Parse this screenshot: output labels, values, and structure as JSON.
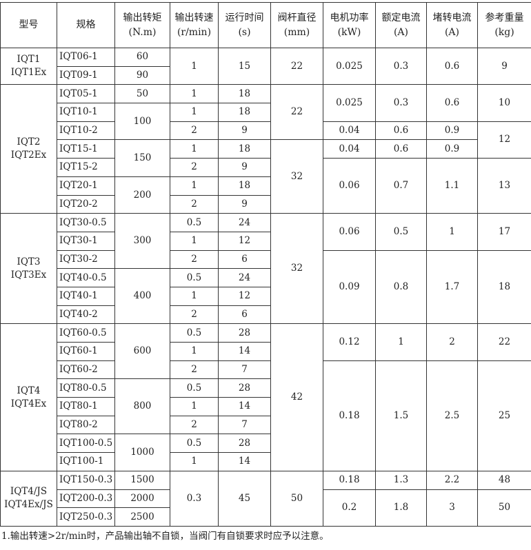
{
  "headers": [
    "型号",
    "规格",
    "输出转矩\n(N.m)",
    "输出转速\n(r/min)",
    "运行时间\n(s)",
    "阀杆直径\n(mm)",
    "电机功率\n(kW)",
    "额定电流\n(A)",
    "堵转电流\n(A)",
    "参考重量\n(kg)"
  ],
  "rows": [
    [
      [
        "IQT1\nIQT1Ex",
        2,
        0
      ],
      [
        "IQT06-1",
        1,
        1
      ],
      [
        "60",
        1,
        2
      ],
      [
        "1",
        2,
        3
      ],
      [
        "15",
        2,
        4
      ],
      [
        "22",
        2,
        5
      ],
      [
        "0.025",
        2,
        6
      ],
      [
        "0.3",
        2,
        7
      ],
      [
        "0.6",
        2,
        8
      ],
      [
        "9",
        2,
        9
      ]
    ],
    [
      [
        "IQT09-1",
        1,
        1
      ],
      [
        "90",
        1,
        2
      ]
    ],
    [
      [
        "IQT2\nIQT2Ex",
        7,
        0
      ],
      [
        "IQT05-1",
        1,
        1
      ],
      [
        "50",
        1,
        2
      ],
      [
        "1",
        1,
        3
      ],
      [
        "18",
        1,
        4
      ],
      [
        "22",
        3,
        5
      ],
      [
        "0.025",
        2,
        6
      ],
      [
        "0.3",
        2,
        7
      ],
      [
        "0.6",
        2,
        8
      ],
      [
        "10",
        2,
        9
      ]
    ],
    [
      [
        "IQT10-1",
        1,
        1
      ],
      [
        "100",
        2,
        2
      ],
      [
        "1",
        1,
        3
      ],
      [
        "18",
        1,
        4
      ]
    ],
    [
      [
        "IQT10-2",
        1,
        1
      ],
      [
        "2",
        1,
        3
      ],
      [
        "9",
        1,
        4
      ],
      [
        "0.04",
        1,
        6
      ],
      [
        "0.6",
        1,
        7
      ],
      [
        "0.9",
        1,
        8
      ],
      [
        "12",
        2,
        9
      ]
    ],
    [
      [
        "IQT15-1",
        1,
        1
      ],
      [
        "150",
        2,
        2
      ],
      [
        "1",
        1,
        3
      ],
      [
        "18",
        1,
        4
      ],
      [
        "32",
        4,
        5
      ],
      [
        "0.04",
        1,
        6
      ],
      [
        "0.6",
        1,
        7
      ],
      [
        "0.9",
        1,
        8
      ]
    ],
    [
      [
        "IQT15-2",
        1,
        1
      ],
      [
        "2",
        1,
        3
      ],
      [
        "9",
        1,
        4
      ],
      [
        "0.06",
        3,
        6
      ],
      [
        "0.7",
        3,
        7
      ],
      [
        "1.1",
        3,
        8
      ],
      [
        "13",
        3,
        9
      ]
    ],
    [
      [
        "IQT20-1",
        1,
        1
      ],
      [
        "200",
        2,
        2
      ],
      [
        "1",
        1,
        3
      ],
      [
        "18",
        1,
        4
      ]
    ],
    [
      [
        "IQT20-2",
        1,
        1
      ],
      [
        "2",
        1,
        3
      ],
      [
        "9",
        1,
        4
      ]
    ],
    [
      [
        "IQT3\nIQT3Ex",
        6,
        0
      ],
      [
        "IQT30-0.5",
        1,
        1
      ],
      [
        "300",
        3,
        2
      ],
      [
        "0.5",
        1,
        3
      ],
      [
        "24",
        1,
        4
      ],
      [
        "32",
        6,
        5
      ],
      [
        "0.06",
        2,
        6
      ],
      [
        "0.5",
        2,
        7
      ],
      [
        "1",
        2,
        8
      ],
      [
        "17",
        2,
        9
      ]
    ],
    [
      [
        "IQT30-1",
        1,
        1
      ],
      [
        "1",
        1,
        3
      ],
      [
        "12",
        1,
        4
      ]
    ],
    [
      [
        "IQT30-2",
        1,
        1
      ],
      [
        "2",
        1,
        3
      ],
      [
        "6",
        1,
        4
      ],
      [
        "0.09",
        4,
        6
      ],
      [
        "0.8",
        4,
        7
      ],
      [
        "1.7",
        4,
        8
      ],
      [
        "18",
        4,
        9
      ]
    ],
    [
      [
        "IQT40-0.5",
        1,
        1
      ],
      [
        "400",
        3,
        2
      ],
      [
        "0.5",
        1,
        3
      ],
      [
        "24",
        1,
        4
      ]
    ],
    [
      [
        "IQT40-1",
        1,
        1
      ],
      [
        "1",
        1,
        3
      ],
      [
        "12",
        1,
        4
      ]
    ],
    [
      [
        "IQT40-2",
        1,
        1
      ],
      [
        "2",
        1,
        3
      ],
      [
        "6",
        1,
        4
      ]
    ],
    [
      [
        "IQT4\nIQT4Ex",
        8,
        0
      ],
      [
        "IQT60-0.5",
        1,
        1
      ],
      [
        "600",
        3,
        2
      ],
      [
        "0.5",
        1,
        3
      ],
      [
        "28",
        1,
        4
      ],
      [
        "42",
        8,
        5
      ],
      [
        "0.12",
        2,
        6
      ],
      [
        "1",
        2,
        7
      ],
      [
        "2",
        2,
        8
      ],
      [
        "22",
        2,
        9
      ]
    ],
    [
      [
        "IQT60-1",
        1,
        1
      ],
      [
        "1",
        1,
        3
      ],
      [
        "14",
        1,
        4
      ]
    ],
    [
      [
        "IQT60-2",
        1,
        1
      ],
      [
        "2",
        1,
        3
      ],
      [
        "7",
        1,
        4
      ],
      [
        "0.18",
        6,
        6
      ],
      [
        "1.5",
        6,
        7
      ],
      [
        "2.5",
        6,
        8
      ],
      [
        "25",
        6,
        9
      ]
    ],
    [
      [
        "IQT80-0.5",
        1,
        1
      ],
      [
        "800",
        3,
        2
      ],
      [
        "0.5",
        1,
        3
      ],
      [
        "28",
        1,
        4
      ]
    ],
    [
      [
        "IQT80-1",
        1,
        1
      ],
      [
        "1",
        1,
        3
      ],
      [
        "14",
        1,
        4
      ]
    ],
    [
      [
        "IQT80-2",
        1,
        1
      ],
      [
        "2",
        1,
        3
      ],
      [
        "7",
        1,
        4
      ]
    ],
    [
      [
        "IQT100-0.5",
        1,
        1
      ],
      [
        "1000",
        2,
        2
      ],
      [
        "0.5",
        1,
        3
      ],
      [
        "28",
        1,
        4
      ]
    ],
    [
      [
        "IQT100-1",
        1,
        1
      ],
      [
        "1",
        1,
        3
      ],
      [
        "14",
        1,
        4
      ]
    ],
    [
      [
        "IQT4/JS\nIQT4Ex/JS",
        3,
        0
      ],
      [
        "IQT150-0.3",
        1,
        1
      ],
      [
        "1500",
        1,
        2
      ],
      [
        "0.3",
        3,
        3
      ],
      [
        "45",
        3,
        4
      ],
      [
        "50",
        3,
        5
      ],
      [
        "0.18",
        1,
        6
      ],
      [
        "1.3",
        1,
        7
      ],
      [
        "2.2",
        1,
        8
      ],
      [
        "48",
        1,
        9
      ]
    ],
    [
      [
        "IQT200-0.3",
        1,
        1
      ],
      [
        "2000",
        1,
        2
      ],
      [
        "0.2",
        2,
        6
      ],
      [
        "1.8",
        2,
        7
      ],
      [
        "3",
        2,
        8
      ],
      [
        "50",
        2,
        9
      ]
    ],
    [
      [
        "IQT250-0.3",
        1,
        1
      ],
      [
        "2500",
        1,
        2
      ]
    ]
  ],
  "footnote": "1.输出转速>2r/min时，产品输出轴不自锁，当阀门有自锁要求时应予以注意。"
}
